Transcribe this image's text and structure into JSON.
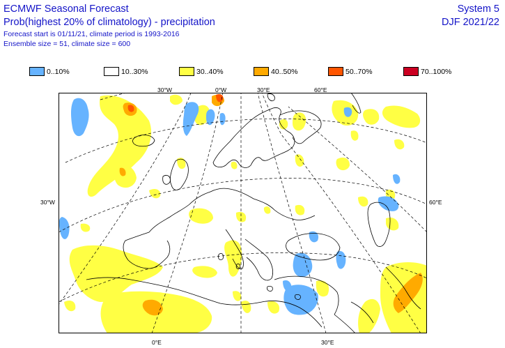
{
  "header": {
    "title": "ECMWF Seasonal Forecast",
    "subtitle": "Prob(highest 20% of climatology) - precipitation",
    "forecast_info": "Forecast start is 01/11/21, climate period is 1993-2016",
    "ensemble_info": "Ensemble size = 51, climate size = 600",
    "system": "System 5",
    "period": "DJF 2021/22"
  },
  "legend": [
    {
      "label": "0..10%",
      "color": "#66b3ff"
    },
    {
      "label": "10..30%",
      "color": "#ffffff"
    },
    {
      "label": "30..40%",
      "color": "#ffff44"
    },
    {
      "label": "40..50%",
      "color": "#ffaa00"
    },
    {
      "label": "50..70%",
      "color": "#ff5500"
    },
    {
      "label": "70..100%",
      "color": "#cc0022"
    }
  ],
  "map": {
    "lon_labels_top": [
      "30°W",
      "0°W",
      "30°E",
      "60°E"
    ],
    "lon_labels_bottom": [
      "0°E",
      "30°E"
    ],
    "lat_labels": [
      "30°W",
      "60°E"
    ]
  }
}
